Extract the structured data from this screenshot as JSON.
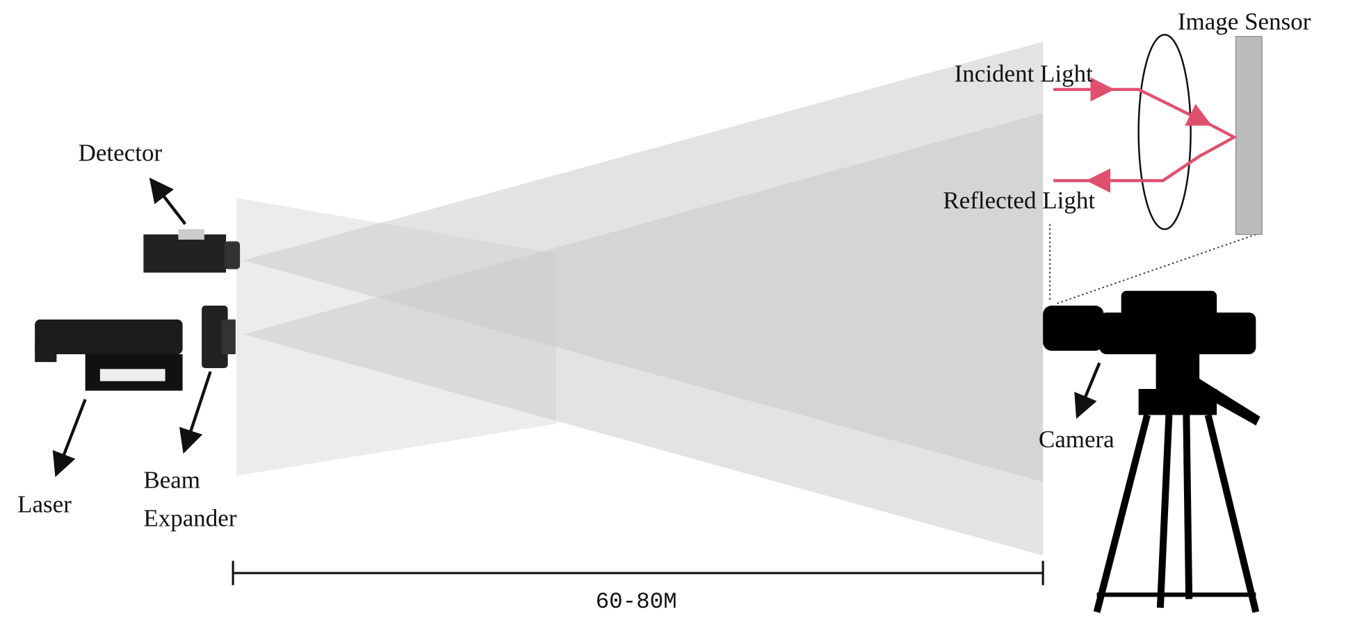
{
  "labels": {
    "image_sensor": "Image Sensor",
    "incident_light": "Incident Light",
    "reflected_light": "Reflected Light",
    "detector": "Detector",
    "laser": "Laser",
    "beam_expander": [
      "Beam",
      "Expander"
    ],
    "camera": "Camera",
    "distance": "60-80M"
  }
}
